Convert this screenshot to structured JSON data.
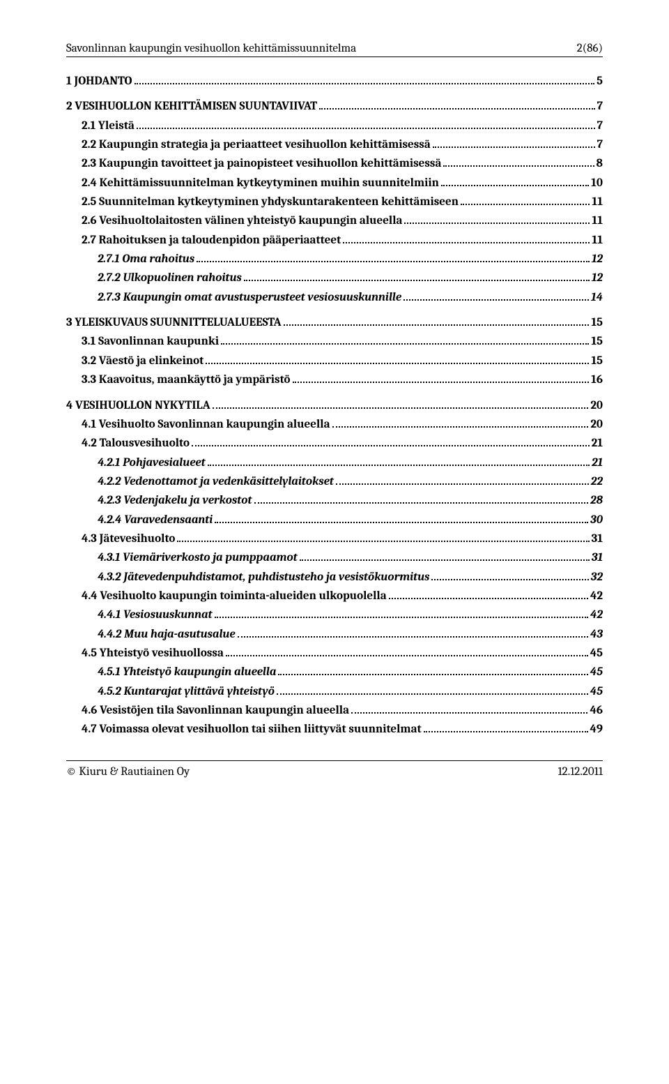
{
  "header": {
    "title": "Savonlinnan kaupungin vesihuollon kehittämissuunnitelma",
    "page_ref": "2(86)"
  },
  "toc": [
    {
      "level": 1,
      "label": "1 JOHDANTO",
      "page": "5"
    },
    {
      "level": 1,
      "label": "2 VESIHUOLLON KEHITTÄMISEN SUUNTAVIIVAT",
      "page": "7"
    },
    {
      "level": 2,
      "label": "2.1 Yleistä",
      "page": "7"
    },
    {
      "level": 2,
      "label": "2.2 Kaupungin strategia ja periaatteet vesihuollon kehittämisessä",
      "page": "7"
    },
    {
      "level": 2,
      "label": "2.3 Kaupungin tavoitteet ja painopisteet vesihuollon kehittämisessä",
      "page": "8"
    },
    {
      "level": 2,
      "label": "2.4 Kehittämissuunnitelman kytkeytyminen muihin suunnitelmiin",
      "page": "10"
    },
    {
      "level": 2,
      "label": "2.5 Suunnitelman kytkeytyminen yhdyskuntarakenteen kehittämiseen",
      "page": "11"
    },
    {
      "level": 2,
      "label": "2.6 Vesihuoltolaitosten välinen yhteistyö kaupungin alueella",
      "page": "11"
    },
    {
      "level": 2,
      "label": "2.7 Rahoituksen ja taloudenpidon pääperiaatteet",
      "page": "11"
    },
    {
      "level": 3,
      "label": "2.7.1 Oma rahoitus",
      "page": "12"
    },
    {
      "level": 3,
      "label": "2.7.2 Ulkopuolinen rahoitus",
      "page": "12"
    },
    {
      "level": 3,
      "label": "2.7.3 Kaupungin omat avustusperusteet vesiosuuskunnille",
      "page": "14"
    },
    {
      "level": 1,
      "label": "3 YLEISKUVAUS SUUNNITTELUALUEESTA",
      "page": "15"
    },
    {
      "level": 2,
      "label": "3.1 Savonlinnan kaupunki",
      "page": "15"
    },
    {
      "level": 2,
      "label": "3.2 Väestö ja elinkeinot",
      "page": "15"
    },
    {
      "level": 2,
      "label": "3.3 Kaavoitus, maankäyttö ja ympäristö",
      "page": "16"
    },
    {
      "level": 1,
      "label": "4 VESIHUOLLON NYKYTILA",
      "page": "20"
    },
    {
      "level": 2,
      "label": "4.1 Vesihuolto Savonlinnan kaupungin alueella",
      "page": "20"
    },
    {
      "level": 2,
      "label": "4.2 Talousvesihuolto",
      "page": "21"
    },
    {
      "level": 3,
      "label": "4.2.1 Pohjavesialueet",
      "page": "21"
    },
    {
      "level": 3,
      "label": "4.2.2 Vedenottamot ja vedenkäsittelylaitokset",
      "page": "22"
    },
    {
      "level": 3,
      "label": "4.2.3 Vedenjakelu ja verkostot",
      "page": "28"
    },
    {
      "level": 3,
      "label": "4.2.4 Varavedensaanti",
      "page": "30"
    },
    {
      "level": 2,
      "label": "4.3 Jätevesihuolto",
      "page": "31"
    },
    {
      "level": 3,
      "label": "4.3.1 Viemäriverkosto ja pumppaamot",
      "page": "31"
    },
    {
      "level": 3,
      "label": "4.3.2 Jätevedenpuhdistamot, puhdistusteho ja vesistökuormitus",
      "page": "32"
    },
    {
      "level": 2,
      "label": "4.4 Vesihuolto kaupungin toiminta-alueiden ulkopuolella",
      "page": "42"
    },
    {
      "level": 3,
      "label": "4.4.1 Vesiosuuskunnat",
      "page": "42"
    },
    {
      "level": 3,
      "label": "4.4.2 Muu haja-asutusalue",
      "page": "43"
    },
    {
      "level": 2,
      "label": "4.5 Yhteistyö vesihuollossa",
      "page": "45"
    },
    {
      "level": 3,
      "label": "4.5.1 Yhteistyö kaupungin alueella",
      "page": "45"
    },
    {
      "level": 3,
      "label": "4.5.2 Kuntarajat ylittävä yhteistyö",
      "page": "45"
    },
    {
      "level": 2,
      "label": "4.6 Vesistöjen tila Savonlinnan kaupungin alueella",
      "page": "46"
    },
    {
      "level": 2,
      "label": "4.7 Voimassa olevat vesihuollon tai siihen liittyvät suunnitelmat",
      "page": "49"
    }
  ],
  "footer": {
    "left": "© Kiuru & Rautiainen Oy",
    "right": "12.12.2011"
  }
}
